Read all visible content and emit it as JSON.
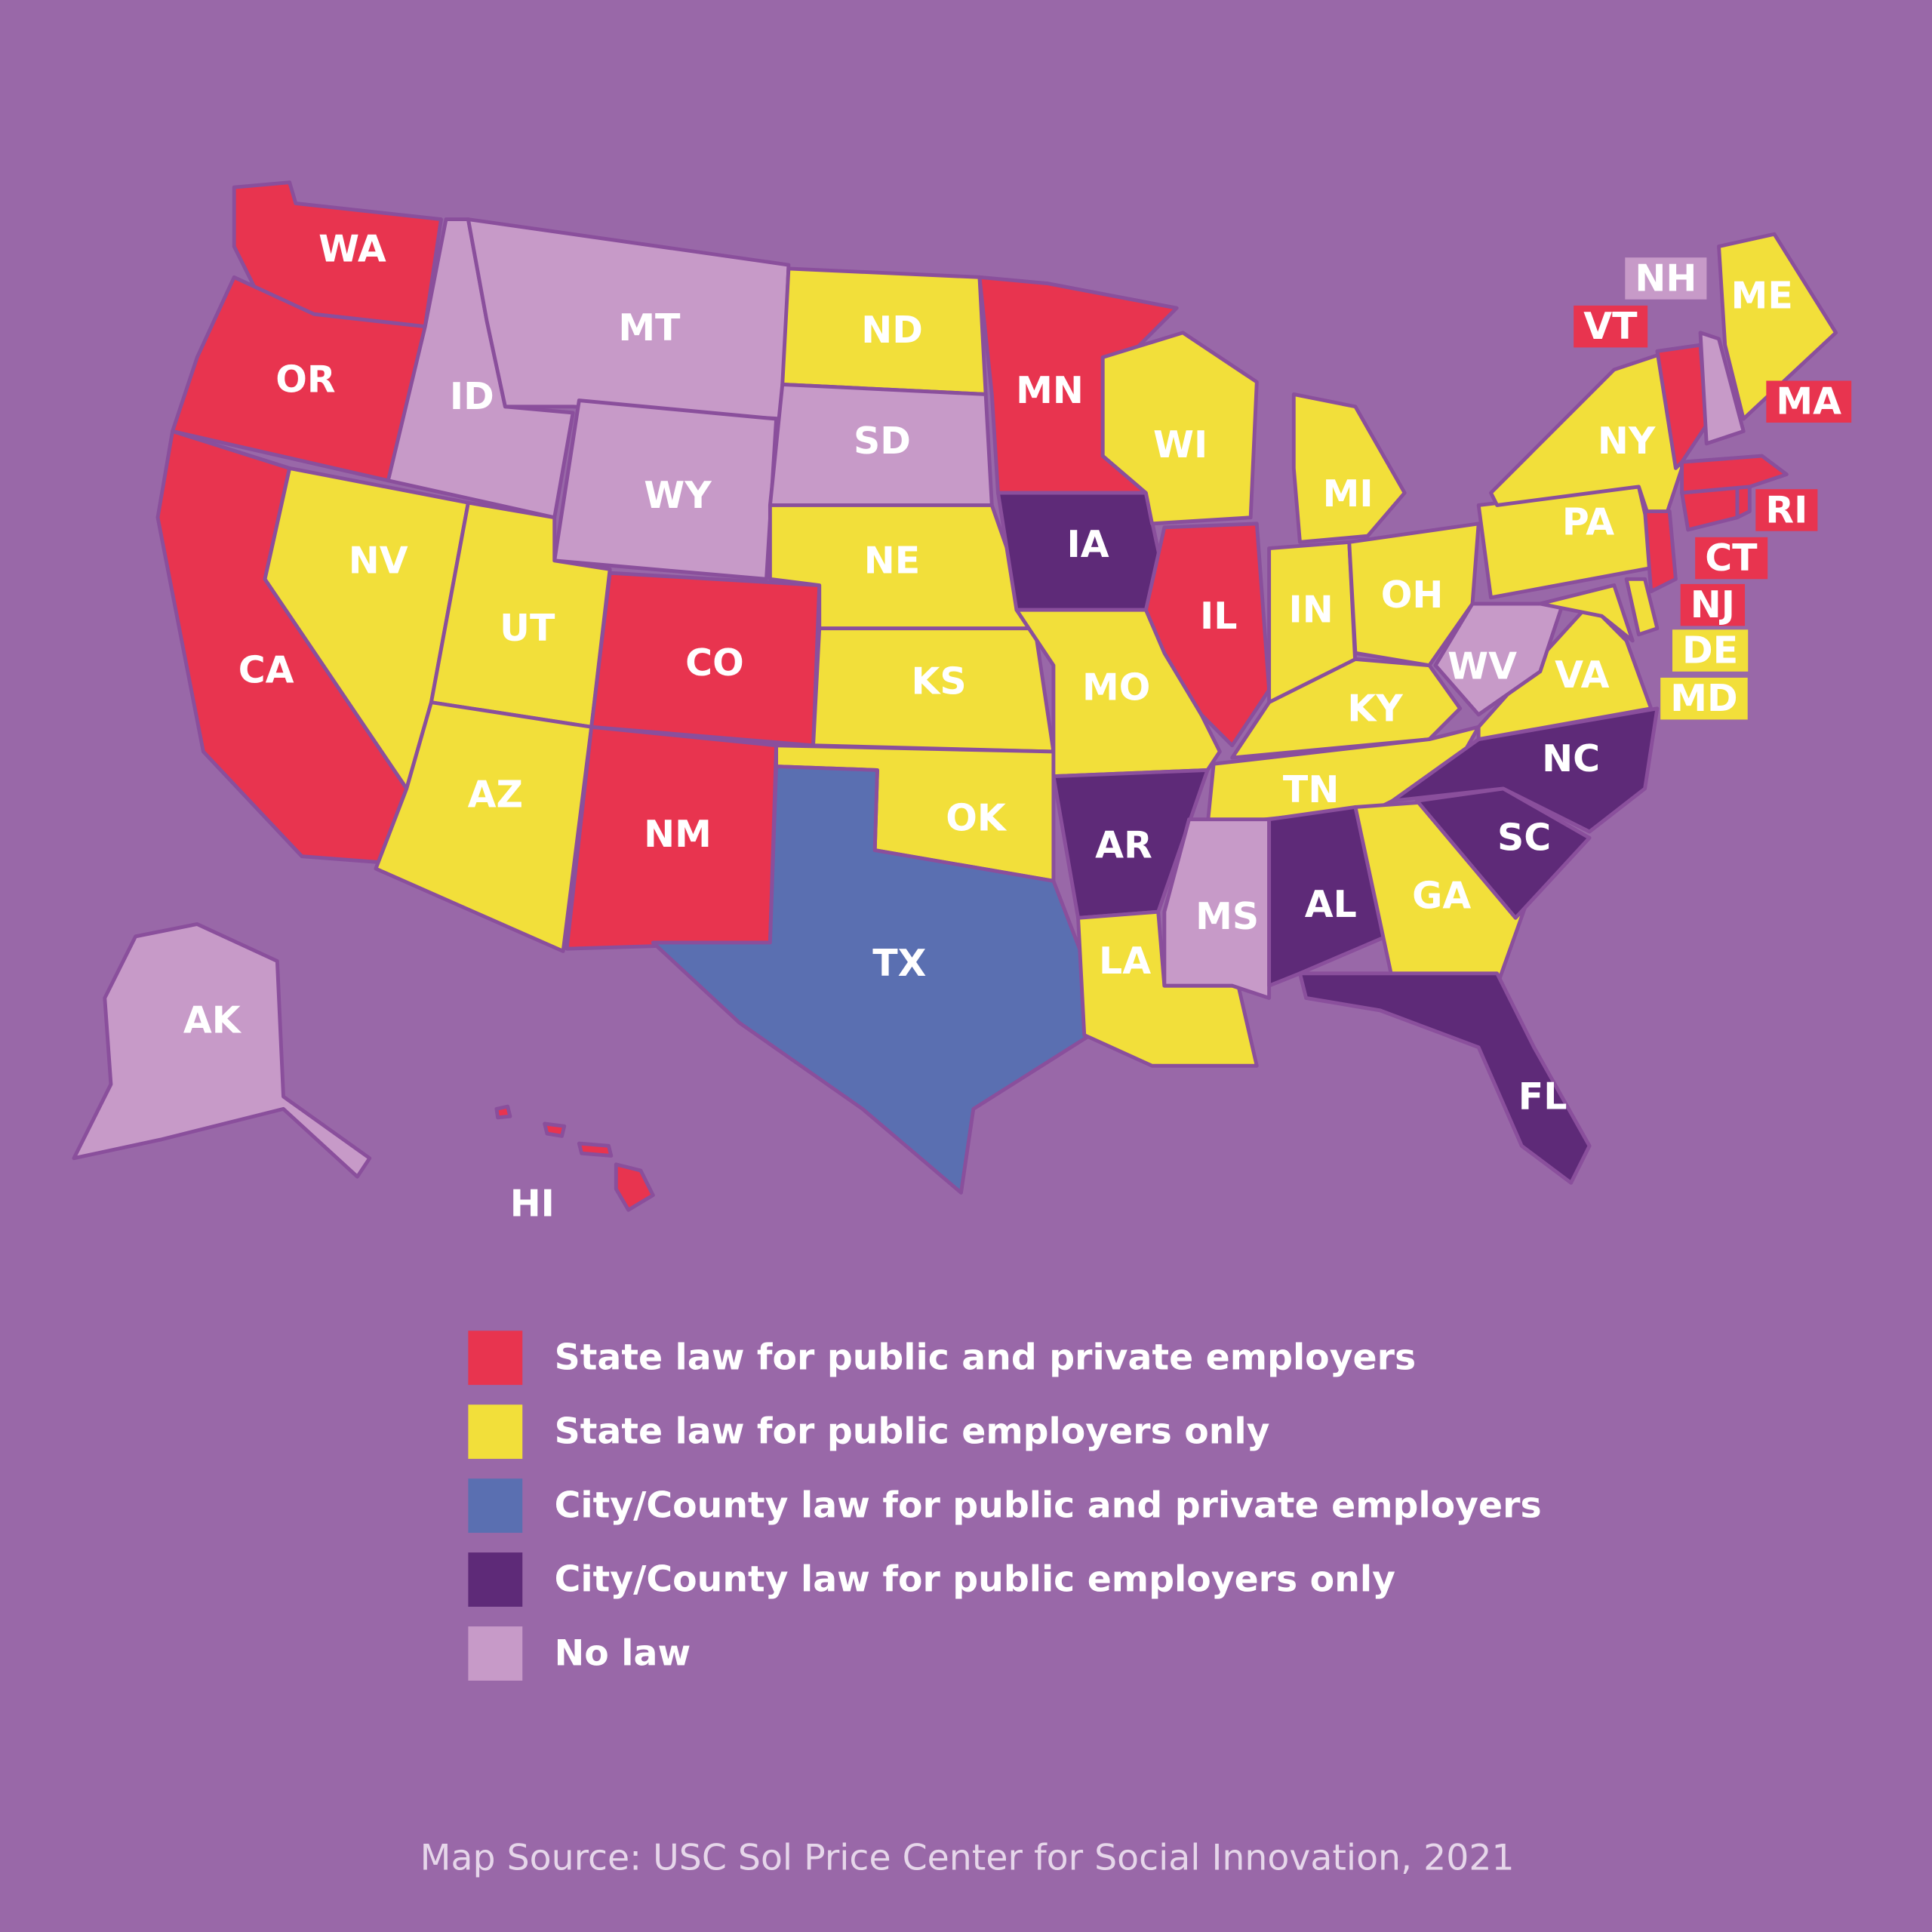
{
  "states": [
    {
      "abbr": "WA",
      "color": "#e8344f"
    },
    {
      "abbr": "OR",
      "color": "#e8344f"
    },
    {
      "abbr": "CA",
      "color": "#e8344f"
    },
    {
      "abbr": "ID",
      "color": "#c79ac8"
    },
    {
      "abbr": "MT",
      "color": "#c79ac8"
    },
    {
      "abbr": "WY",
      "color": "#c79ac8"
    },
    {
      "abbr": "NV",
      "color": "#f2df3a"
    },
    {
      "abbr": "UT",
      "color": "#f2df3a"
    },
    {
      "abbr": "AZ",
      "color": "#f2df3a"
    },
    {
      "abbr": "CO",
      "color": "#e8344f"
    },
    {
      "abbr": "NM",
      "color": "#e8344f"
    },
    {
      "abbr": "ND",
      "color": "#f2df3a"
    },
    {
      "abbr": "SD",
      "color": "#c79ac8"
    },
    {
      "abbr": "NE",
      "color": "#f2df3a"
    },
    {
      "abbr": "KS",
      "color": "#f2df3a"
    },
    {
      "abbr": "OK",
      "color": "#f2df3a"
    },
    {
      "abbr": "TX",
      "color": "#5a6fb1"
    },
    {
      "abbr": "MN",
      "color": "#e8344f"
    },
    {
      "abbr": "IA",
      "color": "#5e2a78"
    },
    {
      "abbr": "MO",
      "color": "#f2df3a"
    },
    {
      "abbr": "AR",
      "color": "#5e2a78"
    },
    {
      "abbr": "LA",
      "color": "#f2df3a"
    },
    {
      "abbr": "WI",
      "color": "#f2df3a"
    },
    {
      "abbr": "IL",
      "color": "#e8344f"
    },
    {
      "abbr": "MI",
      "color": "#f2df3a"
    },
    {
      "abbr": "IN",
      "color": "#f2df3a"
    },
    {
      "abbr": "OH",
      "color": "#f2df3a"
    },
    {
      "abbr": "KY",
      "color": "#f2df3a"
    },
    {
      "abbr": "TN",
      "color": "#f2df3a"
    },
    {
      "abbr": "MS",
      "color": "#c79ac8"
    },
    {
      "abbr": "AL",
      "color": "#5e2a78"
    },
    {
      "abbr": "GA",
      "color": "#f2df3a"
    },
    {
      "abbr": "FL",
      "color": "#5e2a78"
    },
    {
      "abbr": "SC",
      "color": "#5e2a78"
    },
    {
      "abbr": "NC",
      "color": "#5e2a78"
    },
    {
      "abbr": "VA",
      "color": "#f2df3a"
    },
    {
      "abbr": "WV",
      "color": "#c79ac8"
    },
    {
      "abbr": "PA",
      "color": "#f2df3a"
    },
    {
      "abbr": "NY",
      "color": "#f2df3a"
    },
    {
      "abbr": "MD",
      "color": "#f2df3a"
    },
    {
      "abbr": "DE",
      "color": "#f2df3a"
    },
    {
      "abbr": "NJ",
      "color": "#e8344f"
    },
    {
      "abbr": "CT",
      "color": "#e8344f"
    },
    {
      "abbr": "RI",
      "color": "#e8344f"
    },
    {
      "abbr": "MA",
      "color": "#e8344f"
    },
    {
      "abbr": "VT",
      "color": "#e8344f"
    },
    {
      "abbr": "NH",
      "color": "#c79ac8"
    },
    {
      "abbr": "ME",
      "color": "#f2df3a"
    },
    {
      "abbr": "AK",
      "color": "#c79ac8"
    },
    {
      "abbr": "HI",
      "color": "#e8344f"
    }
  ],
  "legend": [
    {
      "label": "State law for public and private employers",
      "color": "#e8344f"
    },
    {
      "label": "State law for public employers only",
      "color": "#f2df3a"
    },
    {
      "label": "City/County law for public and private employers",
      "color": "#5a6fb1"
    },
    {
      "label": "City/County law for public employers only",
      "color": "#5e2a78"
    },
    {
      "label": "No law",
      "color": "#c79ac8"
    }
  ],
  "source": "Map Source: USC Sol Price Center for Social Innovation, 2021"
}
